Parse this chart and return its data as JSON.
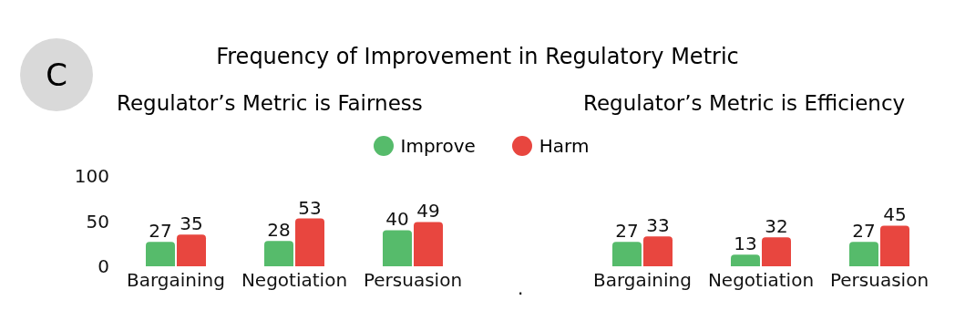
{
  "chart_data": [
    {
      "type": "bar",
      "title": "Frequency of Improvement in Regulatory Metric",
      "subtitle": "Regulator’s Metric is Fairness",
      "annotations": [
        "C"
      ],
      "categories": [
        "Bargaining",
        "Negotiation",
        "Persuasion"
      ],
      "series": [
        {
          "name": "Improve",
          "color": "#56bb6b",
          "values": [
            27,
            28,
            40
          ]
        },
        {
          "name": "Harm",
          "color": "#e8463f",
          "values": [
            35,
            53,
            49
          ]
        }
      ],
      "ylim": [
        0,
        100
      ],
      "yticks": [
        0,
        50,
        100
      ],
      "grid": false,
      "legend": "top",
      "data_labels": true
    },
    {
      "type": "bar",
      "subtitle": "Regulator’s Metric is Efficiency",
      "annotations": [
        "."
      ],
      "categories": [
        "Bargaining",
        "Negotiation",
        "Persuasion"
      ],
      "series": [
        {
          "color": "#56bb6b",
          "values": [
            27,
            13,
            27
          ]
        },
        {
          "color": "#e8463f",
          "values": [
            33,
            32,
            45
          ]
        }
      ],
      "ylim": [
        0,
        100
      ],
      "yticks": [
        0,
        50,
        100
      ],
      "tick_labels": "x",
      "grid": false,
      "data_labels": true
    }
  ]
}
